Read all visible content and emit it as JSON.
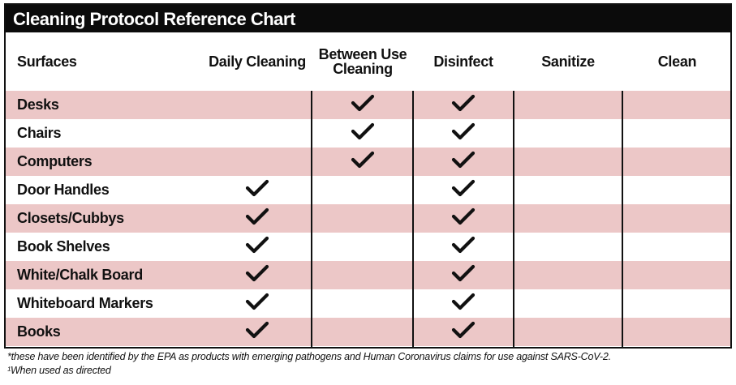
{
  "title": "Cleaning Protocol Reference Chart",
  "columns": [
    {
      "id": "surfaces",
      "label": "Surfaces"
    },
    {
      "id": "daily",
      "label": "Daily Cleaning"
    },
    {
      "id": "between",
      "label": "Between Use Cleaning"
    },
    {
      "id": "disinfect",
      "label": "Disinfect"
    },
    {
      "id": "sanitize",
      "label": "Sanitize"
    },
    {
      "id": "clean",
      "label": "Clean"
    }
  ],
  "rows": [
    {
      "surface": "Desks",
      "daily": false,
      "between": true,
      "disinfect": true,
      "sanitize": false,
      "clean": false
    },
    {
      "surface": "Chairs",
      "daily": false,
      "between": true,
      "disinfect": true,
      "sanitize": false,
      "clean": false
    },
    {
      "surface": "Computers",
      "daily": false,
      "between": true,
      "disinfect": true,
      "sanitize": false,
      "clean": false
    },
    {
      "surface": "Door Handles",
      "daily": true,
      "between": false,
      "disinfect": true,
      "sanitize": false,
      "clean": false
    },
    {
      "surface": "Closets/Cubbys",
      "daily": true,
      "between": false,
      "disinfect": true,
      "sanitize": false,
      "clean": false
    },
    {
      "surface": "Book Shelves",
      "daily": true,
      "between": false,
      "disinfect": true,
      "sanitize": false,
      "clean": false
    },
    {
      "surface": "White/Chalk Board",
      "daily": true,
      "between": false,
      "disinfect": true,
      "sanitize": false,
      "clean": false
    },
    {
      "surface": "Whiteboard Markers",
      "daily": true,
      "between": false,
      "disinfect": true,
      "sanitize": false,
      "clean": false
    },
    {
      "surface": "Books",
      "daily": true,
      "between": false,
      "disinfect": true,
      "sanitize": false,
      "clean": false
    }
  ],
  "footnotes": [
    "*these have been identified by the EPA as products with emerging pathogens and Human Coronavirus claims for use against SARS-CoV-2.",
    "¹When used as directed"
  ],
  "colors": {
    "title_bg": "#0b0b0b",
    "row_shade": "#ecc7c7",
    "text": "#111111"
  },
  "icons": {
    "check": "checkmark-icon"
  }
}
